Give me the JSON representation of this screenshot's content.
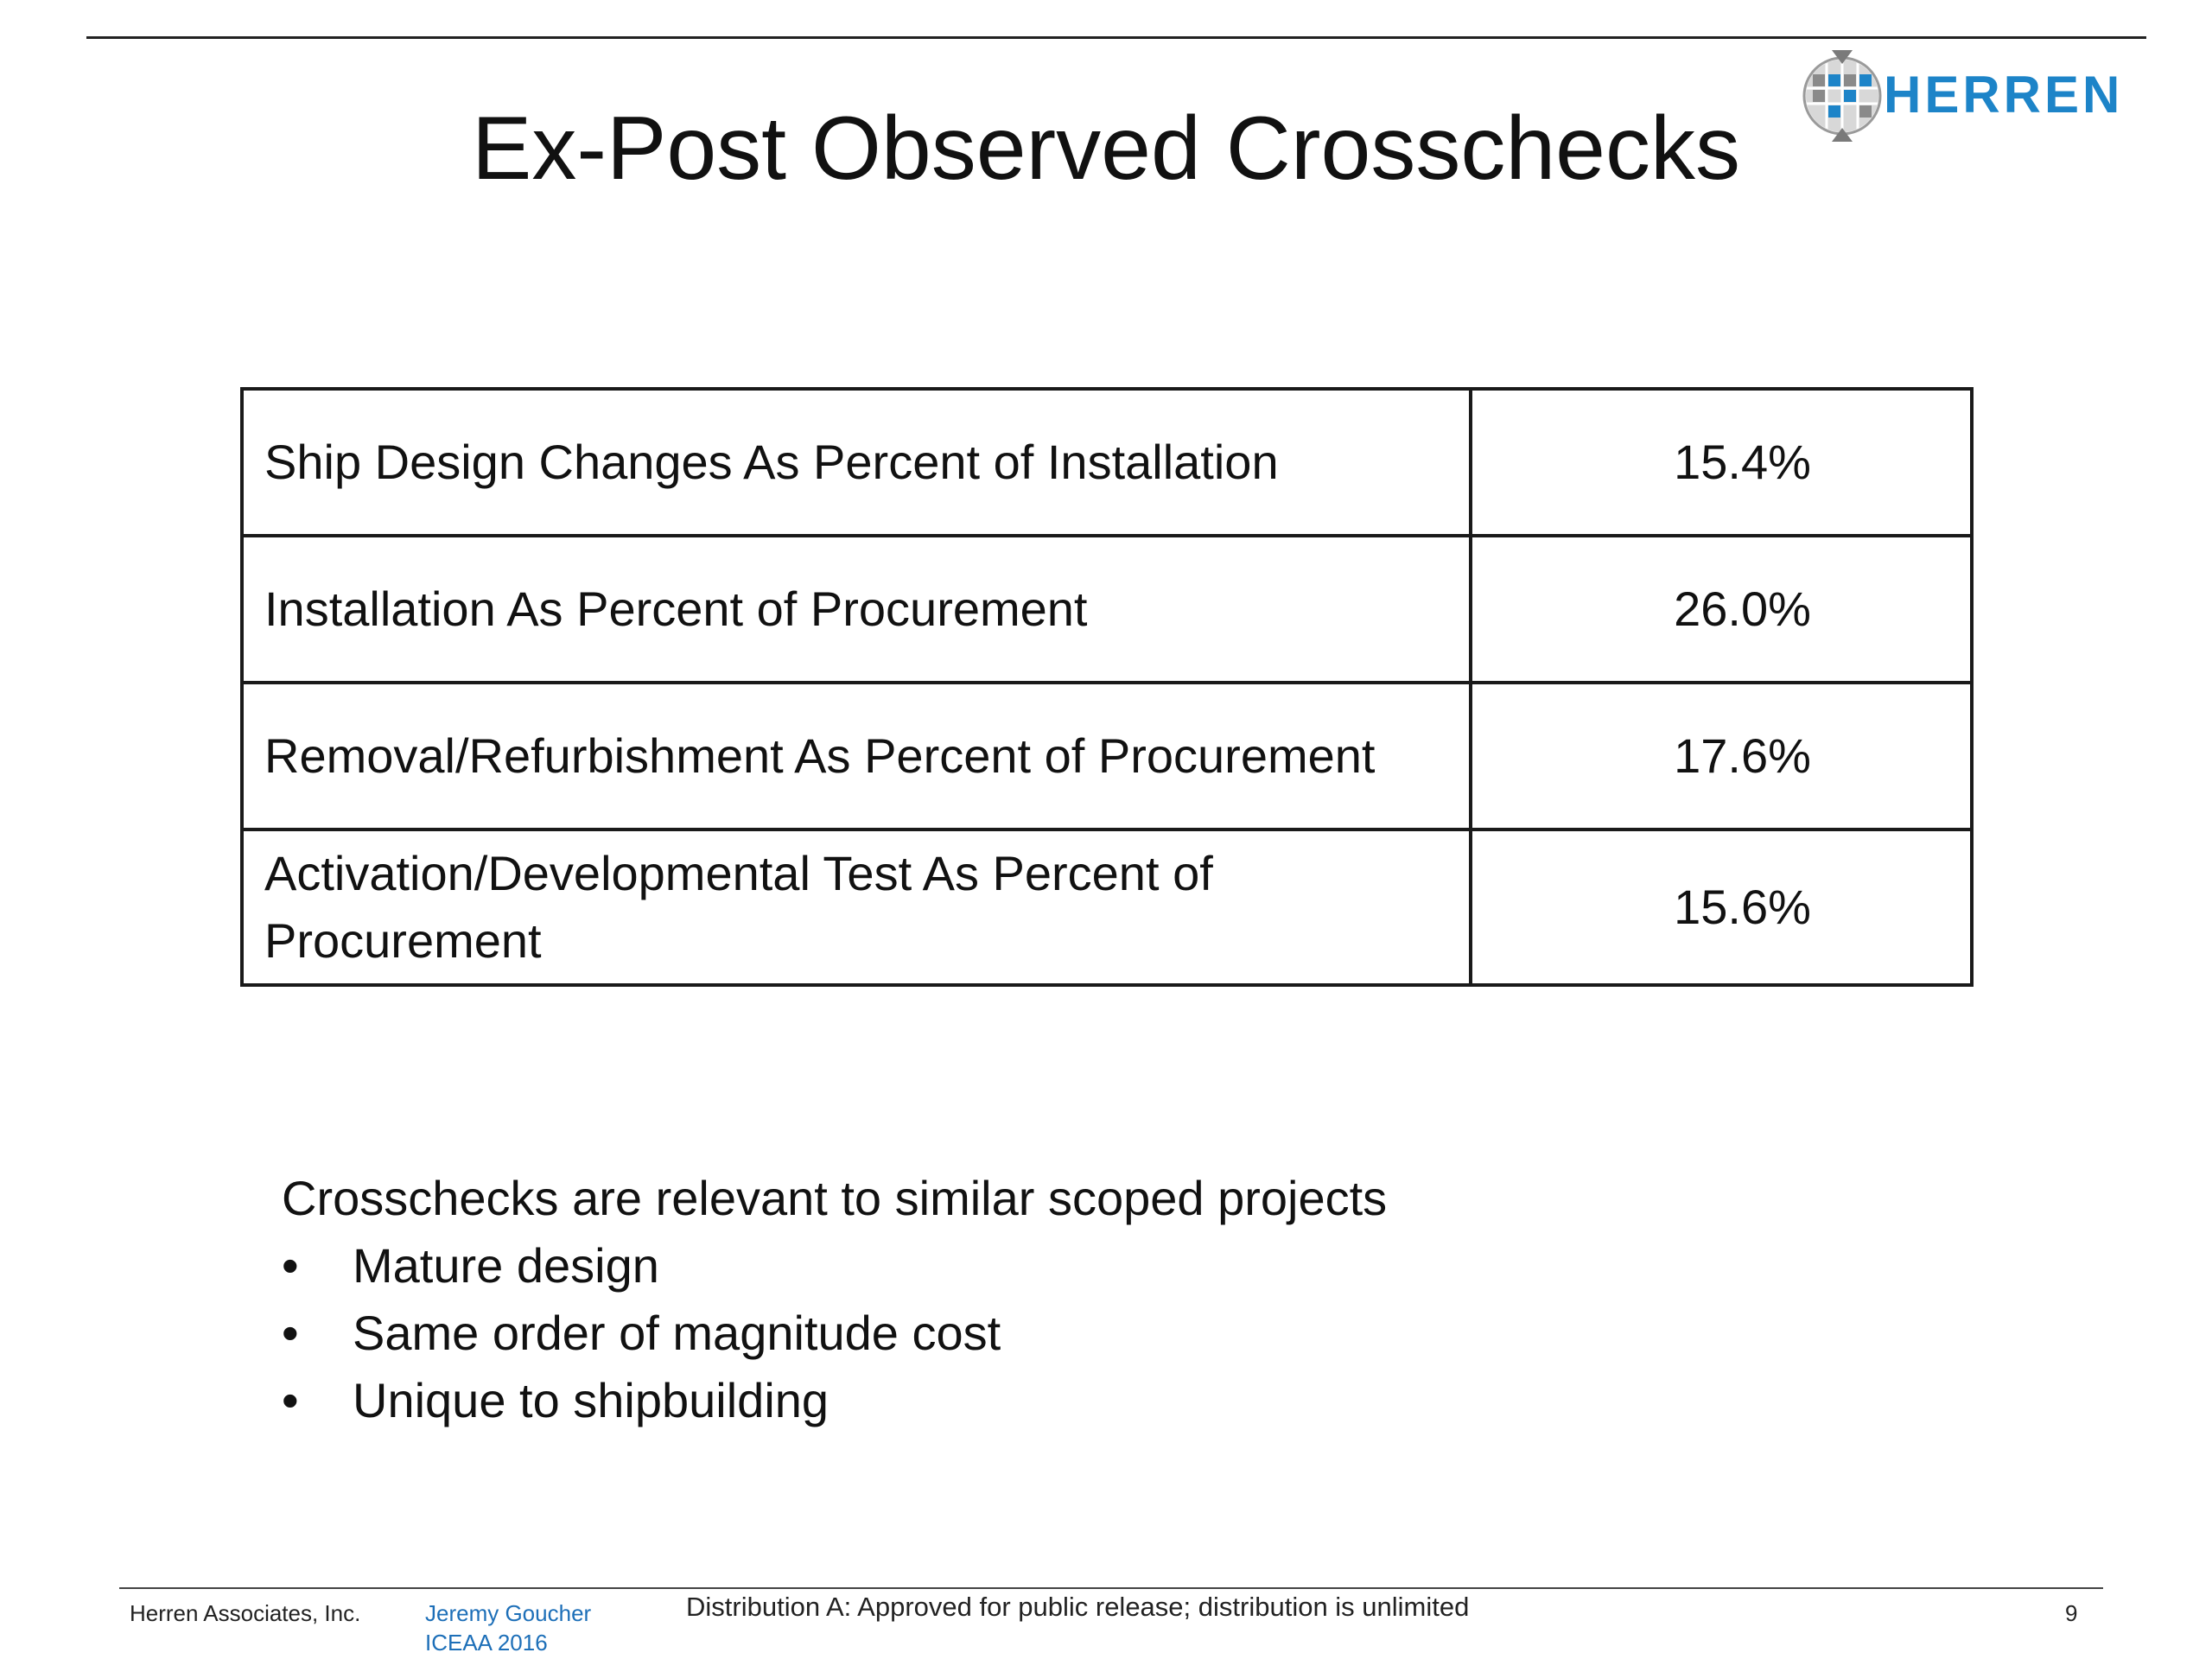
{
  "slide": {
    "title": "Ex-Post Observed Crosschecks",
    "logo": {
      "text": "HERREN",
      "icon": "globe-grid-icon",
      "color": "#1d84c8"
    }
  },
  "table": {
    "rows": [
      {
        "label": "Ship Design Changes As Percent of Installation",
        "value": "15.4%"
      },
      {
        "label": "Installation As Percent of Procurement",
        "value": "26.0%"
      },
      {
        "label": "Removal/Refurbishment As Percent of Procurement",
        "value": "17.6%"
      },
      {
        "label": "Activation/Developmental Test As Percent of Procurement",
        "value": "15.6%"
      }
    ]
  },
  "summary": {
    "heading": "Crosschecks are relevant to similar scoped projects",
    "bullets": [
      "Mature design",
      "Same order of magnitude cost",
      "Unique to shipbuilding"
    ]
  },
  "footer": {
    "company": "Herren Associates, Inc.",
    "author": "Jeremy Goucher",
    "event": "ICEAA 2016",
    "distribution": "Distribution A:  Approved for public release; distribution is unlimited",
    "page_number": "9"
  }
}
